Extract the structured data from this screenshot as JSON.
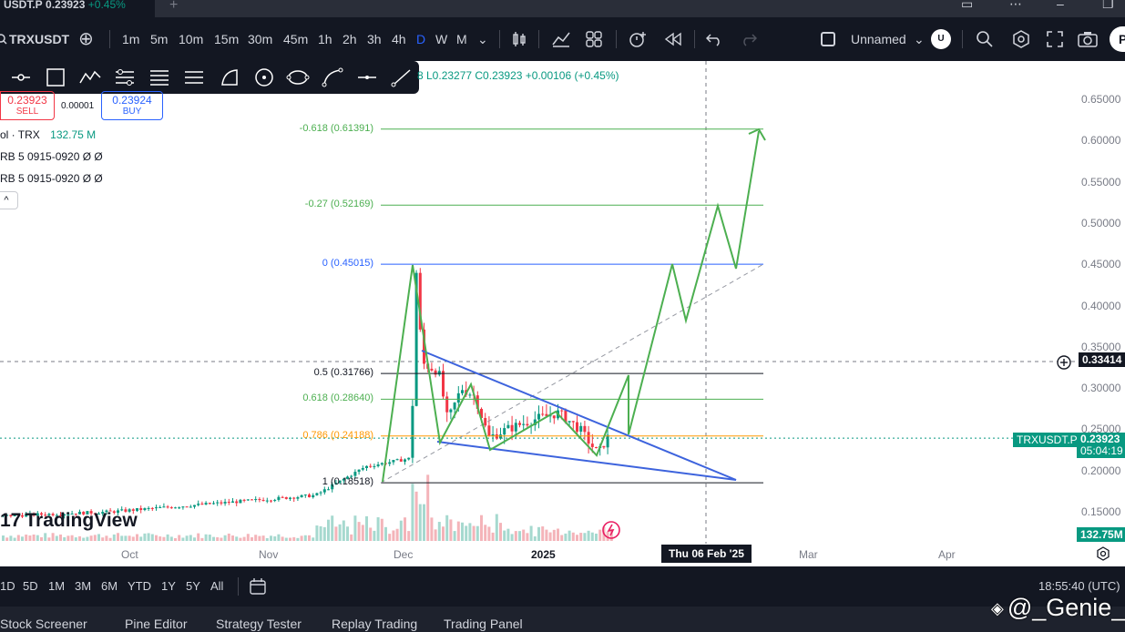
{
  "tabbar": {
    "tab_title": "USDT.P",
    "tab_price": "0.23923",
    "tab_change": "+0.45%",
    "new_tab": "+",
    "window_controls": [
      "▭",
      "⋯",
      "–",
      "❐"
    ]
  },
  "toolbar": {
    "symbol": "TRXUSDT",
    "add_symbol": "⊕",
    "intervals": [
      "1m",
      "5m",
      "10m",
      "15m",
      "30m",
      "45m",
      "1h",
      "2h",
      "3h",
      "4h",
      "D",
      "W",
      "M"
    ],
    "active_interval": "D",
    "interval_dropdown": "⌄",
    "layout_name": "Unnamed",
    "layout_dropdown": "⌄",
    "user_initial": "U",
    "publish_initial": "P",
    "icons": [
      "candles-icon",
      "indicators-icon",
      "templates-icon",
      "alert-icon",
      "replay-icon",
      "undo-icon",
      "redo-icon",
      "layout-icon",
      "search-icon",
      "settings-icon",
      "fullscreen-icon",
      "camera-icon"
    ]
  },
  "draw_tools": {
    "icons": [
      "line-tool-icon",
      "rectangle-icon",
      "pattern-icon",
      "fib-channel-icon",
      "fib-retracement-icon",
      "parallel-channel-icon",
      "curve-icon",
      "circle-icon",
      "ellipse-icon",
      "arc-icon",
      "horizontal-line-icon",
      "ray-icon"
    ]
  },
  "legend": {
    "ohlc_fragment": "8  L0.23277  C0.23923  +0.00106 (+0.45%)",
    "sell_price": "0.23923",
    "sell_label": "SELL",
    "spread": "0.00001",
    "buy_price": "0.23924",
    "buy_label": "BUY",
    "volume_label": "ol · TRX",
    "volume_value": "132.75 M",
    "indicator_1": "RB 5 0915-0920  Ø  Ø",
    "indicator_2": "RB 5 0915-0920  Ø  Ø",
    "collapse": "^"
  },
  "fib_levels": [
    {
      "label": "-0.618 (0.61391)",
      "price": 0.61391,
      "color": "#4caf50"
    },
    {
      "label": "-0.27 (0.52169)",
      "price": 0.52169,
      "color": "#4caf50"
    },
    {
      "label": "0 (0.45015)",
      "price": 0.45015,
      "color": "#2962ff"
    },
    {
      "label": "0.5 (0.31766)",
      "price": 0.31766,
      "color": "#131722"
    },
    {
      "label": "0.618 (0.28640)",
      "price": 0.2864,
      "color": "#4caf50"
    },
    {
      "label": "0.786 (0.24188)",
      "price": 0.24188,
      "color": "#ff9800"
    },
    {
      "label": "1 (0.18518)",
      "price": 0.18518,
      "color": "#131722"
    }
  ],
  "price_axis": {
    "ticks": [
      "0.65000",
      "0.60000",
      "0.55000",
      "0.50000",
      "0.45000",
      "0.40000",
      "0.35000",
      "0.30000",
      "0.25000",
      "0.20000",
      "0.15000"
    ],
    "crosshair_price": "0.33414",
    "last_price": "0.23923",
    "countdown": "05:04:19",
    "symbol_tag": "TRXUSDT.P",
    "volume_tag": "132.75M"
  },
  "time_axis": {
    "ticks": [
      "Oct",
      "Nov",
      "Dec",
      "2025",
      "Mar",
      "Apr"
    ],
    "crosshair_date": "Thu 06 Feb '25"
  },
  "watermark": "TradingView",
  "timeframes": [
    "1D",
    "5D",
    "1M",
    "3M",
    "6M",
    "YTD",
    "1Y",
    "5Y",
    "All"
  ],
  "clock": "18:55:40 (UTC)",
  "bottom_panel": [
    "Stock Screener",
    "Pine Editor",
    "Strategy Tester",
    "Replay Trading",
    "Trading Panel"
  ],
  "signature": "@_Genie_",
  "colors": {
    "up": "#089981",
    "down": "#f23645",
    "projection": "#4caf50",
    "wedge": "#3d63dd",
    "accent": "#2962ff",
    "dark": "#131722"
  }
}
